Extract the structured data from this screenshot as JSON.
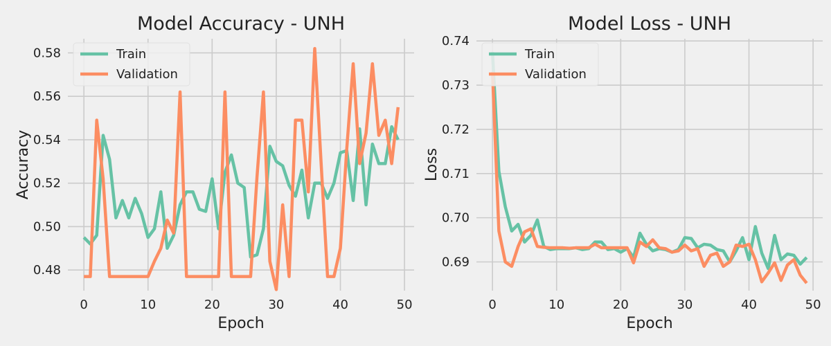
{
  "chart_data": [
    {
      "type": "line",
      "title": "Model Accuracy - UNH",
      "xlabel": "Epoch",
      "ylabel": "Accuracy",
      "xlim": [
        -2.5,
        51.5
      ],
      "ylim": [
        0.4705,
        0.5865
      ],
      "xticks": [
        0,
        10,
        20,
        30,
        40,
        50
      ],
      "yticks": [
        0.48,
        0.5,
        0.52,
        0.54,
        0.56,
        0.58
      ],
      "ytick_labels": [
        "0.48",
        "0.50",
        "0.52",
        "0.54",
        "0.56",
        "0.58"
      ],
      "grid": true,
      "legend": "top-left",
      "series": [
        {
          "name": "Train",
          "color": "#66c2a5",
          "x": [
            0,
            1,
            2,
            3,
            4,
            5,
            6,
            7,
            8,
            9,
            10,
            11,
            12,
            13,
            14,
            15,
            16,
            17,
            18,
            19,
            20,
            21,
            22,
            23,
            24,
            25,
            26,
            27,
            28,
            29,
            30,
            31,
            32,
            33,
            34,
            35,
            36,
            37,
            38,
            39,
            40,
            41,
            42,
            43,
            44,
            45,
            46,
            47,
            48,
            49
          ],
          "y": [
            0.495,
            0.492,
            0.496,
            0.542,
            0.531,
            0.504,
            0.512,
            0.504,
            0.513,
            0.506,
            0.495,
            0.499,
            0.516,
            0.49,
            0.496,
            0.51,
            0.516,
            0.516,
            0.508,
            0.507,
            0.522,
            0.499,
            0.525,
            0.533,
            0.52,
            0.518,
            0.486,
            0.487,
            0.499,
            0.537,
            0.53,
            0.528,
            0.519,
            0.514,
            0.526,
            0.504,
            0.52,
            0.52,
            0.513,
            0.52,
            0.534,
            0.535,
            0.512,
            0.545,
            0.51,
            0.538,
            0.529,
            0.529,
            0.546,
            0.54
          ]
        },
        {
          "name": "Validation",
          "color": "#fc8d62",
          "x": [
            0,
            1,
            2,
            3,
            4,
            5,
            6,
            7,
            8,
            9,
            10,
            11,
            12,
            13,
            14,
            15,
            16,
            17,
            18,
            19,
            20,
            21,
            22,
            23,
            24,
            25,
            26,
            27,
            28,
            29,
            30,
            31,
            32,
            33,
            34,
            35,
            36,
            37,
            38,
            39,
            40,
            41,
            42,
            43,
            44,
            45,
            46,
            47,
            48,
            49
          ],
          "y": [
            0.477,
            0.477,
            0.549,
            0.522,
            0.477,
            0.477,
            0.477,
            0.477,
            0.477,
            0.477,
            0.477,
            0.484,
            0.49,
            0.503,
            0.497,
            0.562,
            0.477,
            0.477,
            0.477,
            0.477,
            0.477,
            0.477,
            0.562,
            0.477,
            0.477,
            0.477,
            0.477,
            0.523,
            0.562,
            0.484,
            0.471,
            0.51,
            0.477,
            0.549,
            0.549,
            0.516,
            0.582,
            0.529,
            0.477,
            0.477,
            0.49,
            0.536,
            0.575,
            0.529,
            0.543,
            0.575,
            0.542,
            0.549,
            0.529,
            0.555
          ]
        }
      ]
    },
    {
      "type": "line",
      "title": "Model Loss - UNH",
      "xlabel": "Epoch",
      "ylabel": "Loss",
      "xlim": [
        -2.5,
        51.5
      ],
      "ylim": [
        0.6835,
        0.7405
      ],
      "xticks": [
        0,
        10,
        20,
        30,
        40,
        50
      ],
      "yticks": [
        0.69,
        0.7,
        0.71,
        0.72,
        0.73,
        0.74
      ],
      "ytick_labels": [
        "0.69",
        "0.70",
        "0.71",
        "0.72",
        "0.73",
        "0.74"
      ],
      "grid": true,
      "legend": "top-left",
      "series": [
        {
          "name": "Train",
          "color": "#66c2a5",
          "x": [
            0,
            1,
            2,
            3,
            4,
            5,
            6,
            7,
            8,
            9,
            10,
            11,
            12,
            13,
            14,
            15,
            16,
            17,
            18,
            19,
            20,
            21,
            22,
            23,
            24,
            25,
            26,
            27,
            28,
            29,
            30,
            31,
            32,
            33,
            34,
            35,
            36,
            37,
            38,
            39,
            40,
            41,
            42,
            43,
            44,
            45,
            46,
            47,
            48,
            49
          ],
          "y": [
            0.7375,
            0.7105,
            0.7025,
            0.697,
            0.6985,
            0.6945,
            0.696,
            0.6995,
            0.6935,
            0.6928,
            0.693,
            0.693,
            0.693,
            0.6932,
            0.6928,
            0.693,
            0.6945,
            0.6945,
            0.6928,
            0.693,
            0.6922,
            0.693,
            0.691,
            0.6965,
            0.694,
            0.6925,
            0.693,
            0.6928,
            0.6922,
            0.6928,
            0.6955,
            0.6953,
            0.6932,
            0.694,
            0.6938,
            0.6928,
            0.6925,
            0.69,
            0.6925,
            0.6955,
            0.6905,
            0.698,
            0.692,
            0.6885,
            0.696,
            0.6905,
            0.6918,
            0.6915,
            0.6895,
            0.691
          ]
        },
        {
          "name": "Validation",
          "color": "#fc8d62",
          "x": [
            0,
            1,
            2,
            3,
            4,
            5,
            6,
            7,
            8,
            9,
            10,
            11,
            12,
            13,
            14,
            15,
            16,
            17,
            18,
            19,
            20,
            21,
            22,
            23,
            24,
            25,
            26,
            27,
            28,
            29,
            30,
            31,
            32,
            33,
            34,
            35,
            36,
            37,
            38,
            39,
            40,
            41,
            42,
            43,
            44,
            45,
            46,
            47,
            48,
            49
          ],
          "y": [
            0.733,
            0.697,
            0.69,
            0.689,
            0.6935,
            0.6968,
            0.6975,
            0.6935,
            0.6933,
            0.6932,
            0.6932,
            0.6932,
            0.6931,
            0.6932,
            0.6932,
            0.6932,
            0.694,
            0.6932,
            0.6932,
            0.6932,
            0.6932,
            0.6932,
            0.6898,
            0.6945,
            0.6935,
            0.695,
            0.6932,
            0.693,
            0.6922,
            0.6925,
            0.6938,
            0.6925,
            0.693,
            0.689,
            0.6915,
            0.692,
            0.689,
            0.69,
            0.6938,
            0.6935,
            0.694,
            0.6905,
            0.6855,
            0.6875,
            0.6898,
            0.6858,
            0.6893,
            0.6905,
            0.687,
            0.6852
          ]
        }
      ]
    }
  ]
}
